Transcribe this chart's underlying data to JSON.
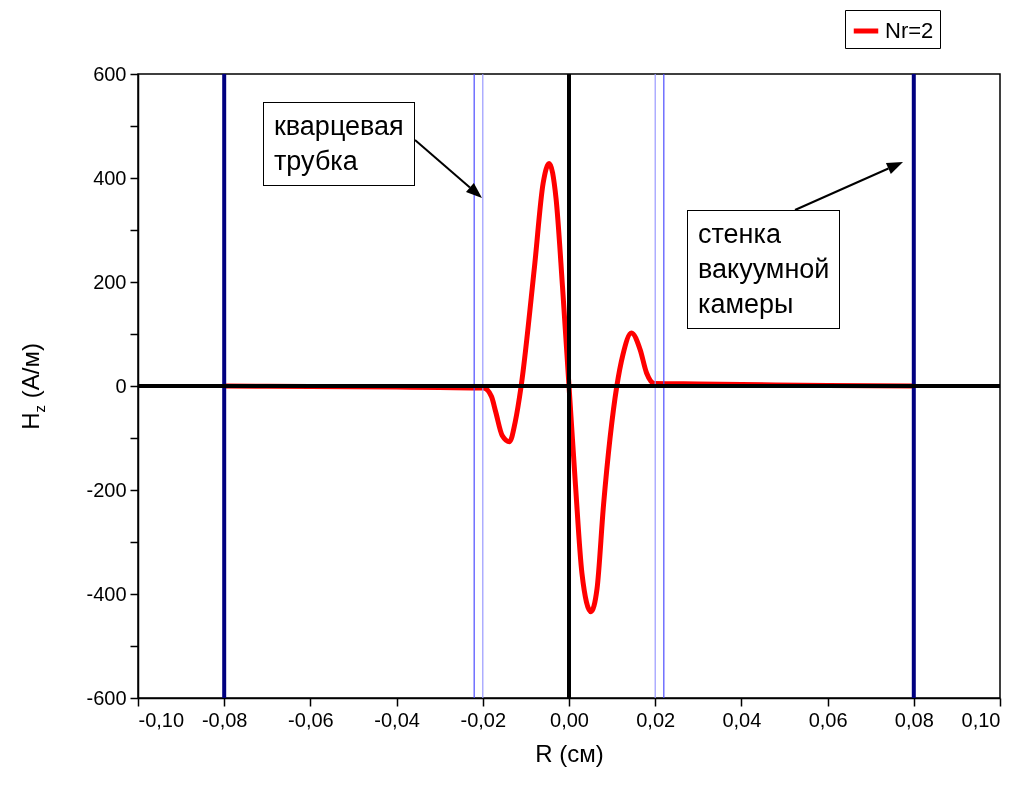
{
  "chart_data": {
    "type": "line",
    "xlabel": "R (см)",
    "ylabel": "H$_{z}$ (А/м)",
    "x": [
      -0.08,
      -0.06,
      -0.04,
      -0.03,
      -0.0198,
      -0.018,
      -0.017,
      -0.0155,
      -0.0138,
      -0.0125,
      -0.0111,
      -0.008,
      -0.006,
      -0.0046,
      -0.003,
      -0.0015,
      0,
      0.0015,
      0.003,
      0.0051,
      0.0065,
      0.008,
      0.0111,
      0.0125,
      0.0145,
      0.0165,
      0.018,
      0.0198,
      0.03,
      0.04,
      0.06,
      0.08
    ],
    "series": [
      {
        "name": "Nr=2",
        "color": "#ff0000",
        "values": [
          0,
          -1,
          -2,
          -3,
          -4,
          -20,
          -50,
          -95,
          -107,
          -70,
          0,
          230,
          390,
          428,
          360,
          190,
          0,
          -190,
          -360,
          -434,
          -390,
          -230,
          0,
          60,
          102,
          70,
          25,
          5,
          4,
          3,
          1,
          0
        ]
      }
    ],
    "xlim": [
      -0.1,
      0.1
    ],
    "ylim": [
      -600,
      600
    ],
    "xticks": [
      {
        "value": -0.1,
        "label": "-0,10"
      },
      {
        "value": -0.08,
        "label": "-0,08"
      },
      {
        "value": -0.06,
        "label": "-0,06"
      },
      {
        "value": -0.04,
        "label": "-0,04"
      },
      {
        "value": -0.02,
        "label": "-0,02"
      },
      {
        "value": 0,
        "label": "0,00"
      },
      {
        "value": 0.02,
        "label": "0,02"
      },
      {
        "value": 0.04,
        "label": "0,04"
      },
      {
        "value": 0.06,
        "label": "0,06"
      },
      {
        "value": 0.08,
        "label": "0,08"
      },
      {
        "value": 0.1,
        "label": "0,10"
      }
    ],
    "yticks": [
      -600,
      {
        "value": -500,
        "label": null
      },
      -400,
      {
        "value": -300,
        "label": null
      },
      -200,
      {
        "value": -100,
        "label": null
      },
      0,
      {
        "value": 100,
        "label": null
      },
      200,
      {
        "value": 300,
        "label": null
      },
      400,
      {
        "value": 500,
        "label": null
      },
      600
    ],
    "ref_lines": [
      {
        "axis": "x",
        "value": -0.08,
        "color": "#000080"
      },
      {
        "axis": "x",
        "value": 0.08,
        "color": "#000080"
      },
      {
        "axis": "x",
        "value": -0.022,
        "color": "#4d4dff"
      },
      {
        "axis": "x",
        "value": -0.02,
        "color": "#9999ff"
      },
      {
        "axis": "x",
        "value": 0.02,
        "color": "#9999ff"
      },
      {
        "axis": "x",
        "value": 0.022,
        "color": "#4d4dff"
      },
      {
        "axis": "x",
        "value": 0,
        "color": "#000000"
      },
      {
        "axis": "y",
        "value": 0,
        "color": "#000000"
      }
    ],
    "annotations": [
      "кварцевая\nтрубка",
      "стенка\nвакуумной\nкамеры"
    ],
    "legend": "top right",
    "grid": false,
    "marker": "none",
    "line_style": "solid"
  }
}
